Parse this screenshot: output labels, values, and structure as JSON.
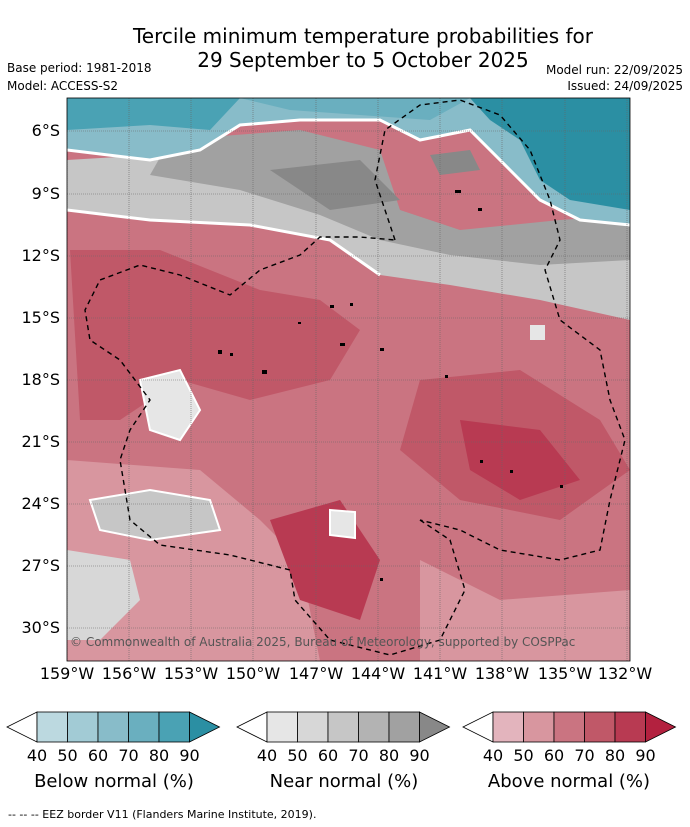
{
  "title_line1": "Tercile minimum temperature probabilities for",
  "title_line2": "29 September to 5 October 2025",
  "base_period": "Base period: 1981-2018",
  "model": "Model: ACCESS-S2",
  "model_run": "Model run: 22/09/2025",
  "issued": "Issued: 24/09/2025",
  "copyright": "© Commonwealth of Australia 2025, Bureau of Meteorology, supported by COSPPac",
  "lat_labels": [
    "6°S",
    "9°S",
    "12°S",
    "15°S",
    "18°S",
    "21°S",
    "24°S",
    "27°S",
    "30°S"
  ],
  "lon_labels": [
    "159°W",
    "156°W",
    "153°W",
    "150°W",
    "147°W",
    "144°W",
    "141°W",
    "138°W",
    "135°W",
    "132°W"
  ],
  "colorbars": [
    {
      "label": "Below normal (%)",
      "ticks": [
        "40",
        "50",
        "60",
        "70",
        "80",
        "90"
      ],
      "colors": [
        "#ffffff",
        "#bcd9e0",
        "#a2cbd5",
        "#88bcc9",
        "#6aafbf",
        "#4aa2b4",
        "#2b8fa3"
      ]
    },
    {
      "label": "Near normal (%)",
      "ticks": [
        "40",
        "50",
        "60",
        "70",
        "80",
        "90"
      ],
      "colors": [
        "#ffffff",
        "#e6e6e6",
        "#d7d7d7",
        "#c6c6c6",
        "#b3b3b3",
        "#a1a1a1",
        "#888888"
      ]
    },
    {
      "label": "Above normal (%)",
      "ticks": [
        "40",
        "50",
        "60",
        "70",
        "80",
        "90"
      ],
      "colors": [
        "#ffffff",
        "#e3b4bd",
        "#d8969f",
        "#ca7481",
        "#c05868",
        "#b83a52",
        "#b3213f"
      ]
    }
  ],
  "footer": "-- -- -- EEZ border V11 (Flanders Marine Institute, 2019)."
}
